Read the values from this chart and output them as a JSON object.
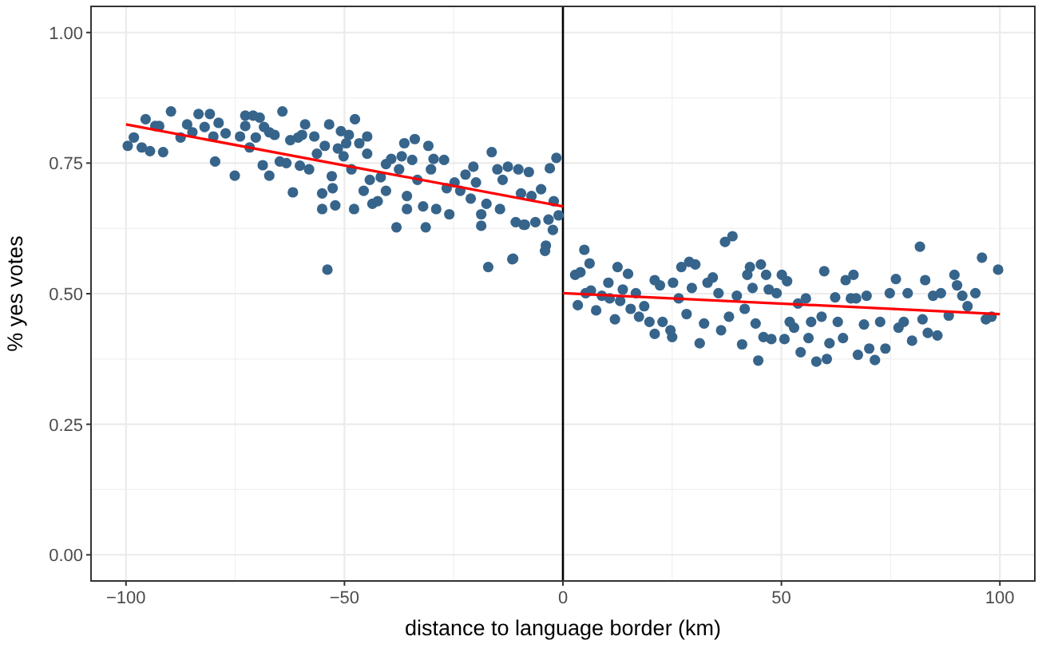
{
  "chart_data": {
    "type": "scatter",
    "xlabel": "distance to language border (km)",
    "ylabel": "% yes votes",
    "xlim": [
      -108,
      108
    ],
    "ylim": [
      -0.05,
      1.05
    ],
    "xticks": [
      -100,
      -50,
      0,
      50,
      100
    ],
    "yticks": [
      {
        "value": 0,
        "label": "0.00"
      },
      {
        "value": 0.25,
        "label": "0.25"
      },
      {
        "value": 0.5,
        "label": "0.50"
      },
      {
        "value": 0.75,
        "label": "0.75"
      },
      {
        "value": 1,
        "label": "1.00"
      }
    ],
    "grid": true,
    "marker": "circle",
    "ref_lines": [
      {
        "axis": "x",
        "value": 0,
        "color": "#000000"
      }
    ],
    "series": [
      {
        "color": "#36648b",
        "x": [
          -99.6,
          -98.2,
          -96.4,
          -94.5,
          -91.5,
          -95.5,
          -93.3,
          -92.4,
          -89.7,
          -87.5,
          -86.0,
          -84.8,
          -83.4,
          -82.0,
          -80.8,
          -80.0,
          -78.8,
          -79.6,
          -77.2,
          -75.1,
          -73.9,
          -72.7,
          -72.7,
          -70.9,
          -69.4,
          -71.7,
          -70.3,
          -68.4,
          -67.2,
          -66.0,
          -68.7,
          -67.2,
          -64.2,
          -64.8,
          -63.3,
          -62.4,
          -61.8,
          -60.6,
          -59.7,
          -59.0,
          -60.2,
          -58.1,
          -56.9,
          -56.3,
          -55.1,
          -55.1,
          -54.5,
          -53.9,
          -53.5,
          -52.9,
          -52.7,
          -52.1,
          -51.5,
          -50.8,
          -50.2,
          -49.6,
          -49.0,
          -47.8,
          -47.6,
          -48.4,
          -46.6,
          -45.6,
          -44.8,
          -44.8,
          -44.2,
          -43.6,
          -42.4,
          -41.7,
          -40.5,
          -40.5,
          -39.3,
          -38.1,
          -37.5,
          -36.9,
          -36.3,
          -35.7,
          -35.7,
          -34.5,
          -33.9,
          -33.3,
          -32.0,
          -31.4,
          -30.8,
          -30.2,
          -29.6,
          -29.0,
          -27.2,
          -26.6,
          -26.0,
          -24.8,
          -23.5,
          -22.3,
          -21.1,
          -20.5,
          -19.9,
          -18.7,
          -18.7,
          -17.5,
          -16.3,
          -17.1,
          -15.0,
          -14.4,
          -13.8,
          -12.6,
          -11.6,
          -10.8,
          -10.2,
          -9.6,
          -9.0,
          -7.8,
          -7.2,
          -11.4,
          -3.9,
          -4.1,
          -2.3,
          -2.1,
          -6.3,
          -8.7,
          -3.3,
          -3.0,
          -1.5,
          -5.0,
          -1.0
        ],
        "values": [
          0.783,
          0.799,
          0.78,
          0.773,
          0.771,
          0.834,
          0.821,
          0.821,
          0.849,
          0.799,
          0.824,
          0.809,
          0.844,
          0.819,
          0.844,
          0.801,
          0.827,
          0.753,
          0.807,
          0.726,
          0.801,
          0.841,
          0.821,
          0.841,
          0.837,
          0.78,
          0.799,
          0.819,
          0.809,
          0.804,
          0.746,
          0.726,
          0.849,
          0.753,
          0.75,
          0.794,
          0.694,
          0.799,
          0.804,
          0.824,
          0.745,
          0.738,
          0.801,
          0.768,
          0.692,
          0.662,
          0.783,
          0.546,
          0.824,
          0.725,
          0.702,
          0.669,
          0.778,
          0.811,
          0.763,
          0.788,
          0.804,
          0.662,
          0.834,
          0.738,
          0.788,
          0.697,
          0.801,
          0.768,
          0.718,
          0.672,
          0.677,
          0.723,
          0.748,
          0.697,
          0.758,
          0.627,
          0.738,
          0.763,
          0.788,
          0.687,
          0.662,
          0.756,
          0.796,
          0.718,
          0.667,
          0.627,
          0.783,
          0.738,
          0.758,
          0.662,
          0.756,
          0.702,
          0.652,
          0.713,
          0.697,
          0.728,
          0.682,
          0.743,
          0.713,
          0.652,
          0.63,
          0.672,
          0.771,
          0.551,
          0.738,
          0.662,
          0.718,
          0.743,
          0.566,
          0.637,
          0.738,
          0.692,
          0.632,
          0.733,
          0.687,
          0.567,
          0.592,
          0.582,
          0.622,
          0.677,
          0.637,
          0.632,
          0.642,
          0.74,
          0.76,
          0.7,
          0.65
        ]
      },
      {
        "color": "#36648b",
        "x": [
          2.8,
          4.0,
          4.9,
          6.1,
          3.4,
          5.2,
          6.4,
          7.6,
          8.9,
          10.4,
          10.7,
          11.9,
          12.5,
          13.1,
          13.7,
          14.9,
          15.5,
          16.7,
          17.4,
          18.6,
          19.8,
          21.0,
          21.0,
          22.2,
          22.8,
          24.6,
          25.0,
          25.2,
          26.5,
          27.1,
          28.3,
          28.9,
          29.5,
          30.3,
          31.3,
          32.3,
          33.1,
          34.3,
          35.6,
          36.2,
          37.1,
          38.0,
          38.8,
          39.8,
          41.0,
          41.6,
          42.2,
          42.8,
          43.4,
          44.1,
          44.7,
          45.3,
          45.9,
          46.5,
          47.1,
          47.7,
          48.9,
          50.1,
          50.7,
          51.3,
          51.9,
          52.9,
          53.8,
          54.4,
          55.6,
          56.2,
          56.8,
          58.0,
          59.2,
          59.8,
          60.4,
          61.0,
          62.3,
          62.9,
          64.1,
          64.7,
          65.9,
          66.5,
          67.1,
          67.5,
          68.9,
          69.5,
          70.1,
          71.4,
          72.6,
          73.8,
          74.8,
          76.2,
          76.8,
          78.0,
          78.9,
          79.9,
          81.7,
          82.3,
          82.9,
          83.5,
          84.7,
          85.7,
          86.5,
          88.3,
          89.6,
          90.2,
          91.4,
          92.6,
          94.4,
          95.9,
          96.8,
          98.1,
          99.6
        ],
        "values": [
          0.536,
          0.541,
          0.584,
          0.558,
          0.478,
          0.501,
          0.506,
          0.468,
          0.496,
          0.521,
          0.491,
          0.451,
          0.551,
          0.486,
          0.508,
          0.538,
          0.471,
          0.501,
          0.456,
          0.476,
          0.446,
          0.423,
          0.526,
          0.516,
          0.446,
          0.43,
          0.417,
          0.521,
          0.491,
          0.551,
          0.461,
          0.561,
          0.511,
          0.556,
          0.405,
          0.443,
          0.521,
          0.531,
          0.501,
          0.43,
          0.599,
          0.456,
          0.61,
          0.496,
          0.403,
          0.471,
          0.536,
          0.551,
          0.511,
          0.443,
          0.372,
          0.556,
          0.417,
          0.536,
          0.508,
          0.413,
          0.501,
          0.536,
          0.413,
          0.524,
          0.446,
          0.435,
          0.481,
          0.388,
          0.491,
          0.415,
          0.446,
          0.37,
          0.456,
          0.543,
          0.375,
          0.405,
          0.493,
          0.446,
          0.415,
          0.526,
          0.491,
          0.536,
          0.491,
          0.383,
          0.441,
          0.496,
          0.395,
          0.373,
          0.446,
          0.395,
          0.501,
          0.528,
          0.435,
          0.446,
          0.501,
          0.41,
          0.59,
          0.451,
          0.526,
          0.425,
          0.496,
          0.42,
          0.501,
          0.458,
          0.536,
          0.516,
          0.496,
          0.476,
          0.501,
          0.569,
          0.451,
          0.456,
          0.546
        ]
      },
      {
        "type": "line",
        "marker": "none",
        "color": "#ff0000",
        "x": [
          -100,
          0
        ],
        "values": [
          0.824,
          0.667
        ]
      },
      {
        "type": "line",
        "marker": "none",
        "color": "#ff0000",
        "x": [
          0,
          100
        ],
        "values": [
          0.501,
          0.461
        ]
      }
    ]
  }
}
